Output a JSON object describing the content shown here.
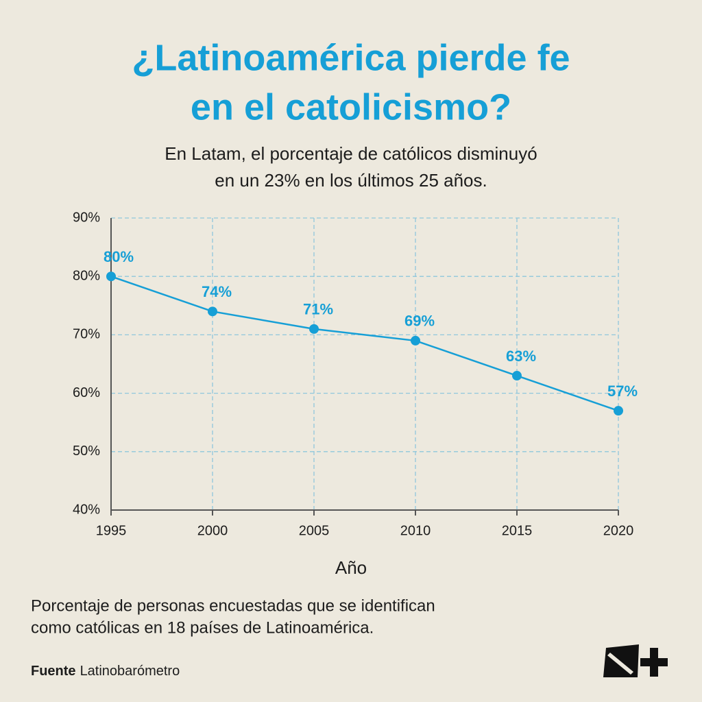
{
  "chart_data": {
    "type": "line",
    "title": [
      "¿Latinoamérica pierde fe",
      "en el catolicismo?"
    ],
    "subtitle": [
      "En Latam, el porcentaje de católicos disminuyó",
      "en un 23% en los últimos 25 años."
    ],
    "x_label": "Año",
    "note": [
      "Porcentaje de personas encuestadas que se identifican",
      "como católicas en 18 países de Latinoamérica."
    ],
    "source_label": "Fuente",
    "source": "Latinobarómetro",
    "x": [
      1995,
      2000,
      2005,
      2010,
      2015,
      2020
    ],
    "series": [
      {
        "name": null,
        "color": "#169fd6",
        "values": [
          80,
          74,
          71,
          69,
          63,
          57
        ],
        "value_labels": [
          "80%",
          "74%",
          "71%",
          "69%",
          "63%",
          "57%"
        ]
      }
    ],
    "xlim": [
      1995,
      2020
    ],
    "xticks": [
      1995,
      2000,
      2005,
      2010,
      2015,
      2020
    ],
    "ylim": [
      40,
      90
    ],
    "yticks": [
      {
        "value": 40,
        "label": "40%"
      },
      {
        "value": 50,
        "label": "50%"
      },
      {
        "value": 60,
        "label": "60%"
      },
      {
        "value": 70,
        "label": "70%"
      },
      {
        "value": 80,
        "label": "80%"
      },
      {
        "value": 90,
        "label": "90%"
      }
    ],
    "grid": true
  }
}
